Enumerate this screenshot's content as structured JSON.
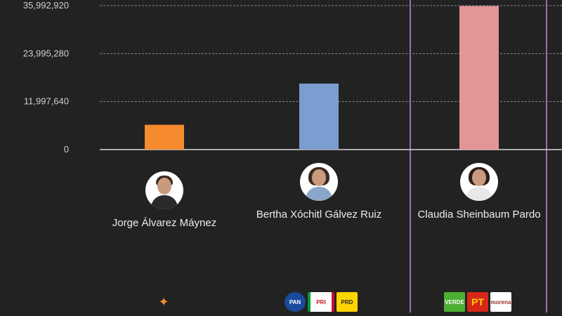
{
  "chart_data": {
    "type": "bar",
    "categories": [
      "Jorge Álvarez Máynez",
      "Bertha Xóchitl Gálvez Ruiz",
      "Claudia Sheinbaum Pardo"
    ],
    "values": [
      6200000,
      16500000,
      35900000
    ],
    "colors": [
      "#f58a2e",
      "#7b9ed1",
      "#e39597"
    ],
    "ylim": [
      0,
      35992920
    ],
    "yticks": [
      "0",
      "11,997,640",
      "23,995,280",
      "35,992,920"
    ],
    "ytick_values": [
      0,
      11997640,
      23995280,
      35992920
    ],
    "grid": true,
    "highlight": "Claudia Sheinbaum Pardo"
  },
  "candidates": [
    {
      "name": "Jorge Álvarez Máynez",
      "avatar": "man-portrait",
      "parties": [
        {
          "name": "Movimiento Ciudadano",
          "icon": "mc-eagle-icon",
          "color": "#f58a2e",
          "text": ""
        }
      ]
    },
    {
      "name": "Bertha Xóchitl Gálvez Ruiz",
      "avatar": "woman-portrait",
      "parties": [
        {
          "name": "PAN",
          "icon": "pan-logo",
          "color": "#1a4a9e",
          "text": "PAN"
        },
        {
          "name": "PRI",
          "icon": "pri-logo",
          "color": "#ffffff",
          "text": "PRI"
        },
        {
          "name": "PRD",
          "icon": "prd-logo",
          "color": "#ffd400",
          "text": "PRD"
        }
      ]
    },
    {
      "name": "Claudia Sheinbaum Pardo",
      "avatar": "woman-portrait",
      "parties": [
        {
          "name": "VERDE",
          "icon": "verde-logo",
          "color": "#4caf30",
          "text": "VERDE"
        },
        {
          "name": "PT",
          "icon": "pt-logo",
          "color": "#d62718",
          "text": "PT"
        },
        {
          "name": "morena",
          "icon": "morena-logo",
          "color": "#ffffff",
          "text": "morena"
        }
      ]
    }
  ]
}
